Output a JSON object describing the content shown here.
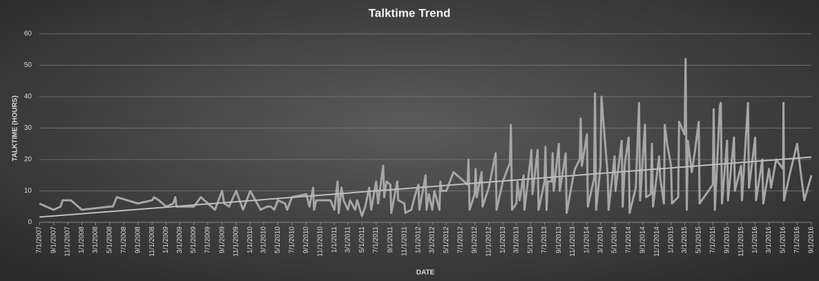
{
  "chart_data": {
    "type": "line",
    "title": "Talktime Trend",
    "x_label": "DATE",
    "y_label": "TALKTIME (HOURS)",
    "color": "#a6a6a6",
    "trendline": "linear",
    "trendline_color": "#bfbfbf",
    "grid": true,
    "ylim": [
      0,
      60
    ],
    "yticks": [
      0,
      10,
      20,
      30,
      40,
      50,
      60
    ],
    "xlim": [
      "2007-07-01",
      "2016-09-01"
    ],
    "xticks": [
      {
        "value": "2007-07-01",
        "label": "7/1/2007"
      },
      {
        "value": "2007-09-01",
        "label": "9/1/2007"
      },
      {
        "value": "2007-11-01",
        "label": "11/1/2007"
      },
      {
        "value": "2008-01-01",
        "label": "1/1/2008"
      },
      {
        "value": "2008-03-01",
        "label": "3/1/2008"
      },
      {
        "value": "2008-05-01",
        "label": "5/1/2008"
      },
      {
        "value": "2008-07-01",
        "label": "7/1/2008"
      },
      {
        "value": "2008-09-01",
        "label": "9/1/2008"
      },
      {
        "value": "2008-11-01",
        "label": "11/1/2008"
      },
      {
        "value": "2009-01-01",
        "label": "1/1/2009"
      },
      {
        "value": "2009-03-01",
        "label": "3/1/2009"
      },
      {
        "value": "2009-05-01",
        "label": "5/1/2009"
      },
      {
        "value": "2009-07-01",
        "label": "7/1/2009"
      },
      {
        "value": "2009-09-01",
        "label": "9/1/2009"
      },
      {
        "value": "2009-11-01",
        "label": "11/1/2009"
      },
      {
        "value": "2010-01-01",
        "label": "1/1/2010"
      },
      {
        "value": "2010-03-01",
        "label": "3/1/2010"
      },
      {
        "value": "2010-05-01",
        "label": "5/1/2010"
      },
      {
        "value": "2010-07-01",
        "label": "7/1/2010"
      },
      {
        "value": "2010-09-01",
        "label": "9/1/2010"
      },
      {
        "value": "2010-11-01",
        "label": "11/1/2010"
      },
      {
        "value": "2011-01-01",
        "label": "1/1/2011"
      },
      {
        "value": "2011-03-01",
        "label": "3/1/2011"
      },
      {
        "value": "2011-05-01",
        "label": "5/1/2011"
      },
      {
        "value": "2011-07-01",
        "label": "7/1/2011"
      },
      {
        "value": "2011-09-01",
        "label": "9/1/2011"
      },
      {
        "value": "2011-11-01",
        "label": "11/1/2011"
      },
      {
        "value": "2012-01-01",
        "label": "1/1/2012"
      },
      {
        "value": "2012-03-01",
        "label": "3/1/2012"
      },
      {
        "value": "2012-05-01",
        "label": "5/1/2012"
      },
      {
        "value": "2012-07-01",
        "label": "7/1/2012"
      },
      {
        "value": "2012-09-01",
        "label": "9/1/2012"
      },
      {
        "value": "2012-11-01",
        "label": "11/1/2012"
      },
      {
        "value": "2013-01-01",
        "label": "1/1/2013"
      },
      {
        "value": "2013-03-01",
        "label": "3/1/2013"
      },
      {
        "value": "2013-05-01",
        "label": "5/1/2013"
      },
      {
        "value": "2013-07-01",
        "label": "7/1/2013"
      },
      {
        "value": "2013-09-01",
        "label": "9/1/2013"
      },
      {
        "value": "2013-11-01",
        "label": "11/1/2013"
      },
      {
        "value": "2014-01-01",
        "label": "1/1/2014"
      },
      {
        "value": "2014-03-01",
        "label": "3/1/2014"
      },
      {
        "value": "2014-05-01",
        "label": "5/1/2014"
      },
      {
        "value": "2014-07-01",
        "label": "7/1/2014"
      },
      {
        "value": "2014-09-01",
        "label": "9/1/2014"
      },
      {
        "value": "2014-11-01",
        "label": "11/1/2014"
      },
      {
        "value": "2015-01-01",
        "label": "1/1/2015"
      },
      {
        "value": "2015-03-01",
        "label": "3/1/2015"
      },
      {
        "value": "2015-05-01",
        "label": "5/1/2015"
      },
      {
        "value": "2015-07-01",
        "label": "7/1/2015"
      },
      {
        "value": "2015-09-01",
        "label": "9/1/2015"
      },
      {
        "value": "2015-11-01",
        "label": "11/1/2015"
      },
      {
        "value": "2016-01-01",
        "label": "1/1/2016"
      },
      {
        "value": "2016-03-01",
        "label": "3/1/2016"
      },
      {
        "value": "2016-05-01",
        "label": "5/1/2016"
      },
      {
        "value": "2016-07-01",
        "label": "7/1/2016"
      },
      {
        "value": "2016-09-01",
        "label": "9/1/2016"
      }
    ],
    "x": [
      "2007-07-01",
      "2007-08-15",
      "2007-09-01",
      "2007-10-01",
      "2007-10-10",
      "2007-11-15",
      "2008-01-01",
      "2008-05-01",
      "2008-05-15",
      "2008-06-01",
      "2008-09-01",
      "2008-11-01",
      "2008-11-10",
      "2008-12-01",
      "2009-01-01",
      "2009-02-01",
      "2009-02-10",
      "2009-02-15",
      "2009-05-01",
      "2009-06-01",
      "2009-08-01",
      "2009-09-01",
      "2009-09-10",
      "2009-10-01",
      "2009-11-01",
      "2009-12-01",
      "2010-01-01",
      "2010-02-15",
      "2010-03-15",
      "2010-04-01",
      "2010-04-15",
      "2010-05-01",
      "2010-06-01",
      "2010-06-10",
      "2010-07-01",
      "2010-09-01",
      "2010-09-15",
      "2010-10-01",
      "2010-10-05",
      "2010-10-15",
      "2010-12-15",
      "2011-01-01",
      "2011-01-15",
      "2011-01-20",
      "2011-02-01",
      "2011-02-10",
      "2011-03-01",
      "2011-03-10",
      "2011-04-01",
      "2011-04-10",
      "2011-05-01",
      "2011-05-15",
      "2011-06-01",
      "2011-06-10",
      "2011-07-01",
      "2011-07-10",
      "2011-08-01",
      "2011-08-05",
      "2011-08-15",
      "2011-09-01",
      "2011-09-05",
      "2011-10-01",
      "2011-10-05",
      "2011-11-01",
      "2011-11-05",
      "2011-12-01",
      "2011-12-15",
      "2012-01-01",
      "2012-01-05",
      "2012-02-01",
      "2012-02-05",
      "2012-02-15",
      "2012-03-01",
      "2012-03-10",
      "2012-04-01",
      "2012-04-05",
      "2012-04-10",
      "2012-05-01",
      "2012-06-01",
      "2012-08-01",
      "2012-08-05",
      "2012-08-10",
      "2012-09-01",
      "2012-09-05",
      "2012-09-10",
      "2012-10-01",
      "2012-10-05",
      "2012-11-01",
      "2012-12-01",
      "2012-12-05",
      "2013-01-01",
      "2013-02-01",
      "2013-02-05",
      "2013-02-10",
      "2013-03-01",
      "2013-03-05",
      "2013-03-15",
      "2013-04-01",
      "2013-04-05",
      "2013-05-01",
      "2013-05-05",
      "2013-05-10",
      "2013-06-01",
      "2013-06-05",
      "2013-07-01",
      "2013-07-05",
      "2013-07-10",
      "2013-07-15",
      "2013-08-01",
      "2013-08-05",
      "2013-08-10",
      "2013-09-01",
      "2013-09-05",
      "2013-10-01",
      "2013-10-05",
      "2013-11-01",
      "2013-11-10",
      "2013-12-01",
      "2013-12-05",
      "2013-12-10",
      "2014-01-01",
      "2014-01-05",
      "2014-02-01",
      "2014-02-05",
      "2014-02-10",
      "2014-03-01",
      "2014-03-05",
      "2014-04-01",
      "2014-04-05",
      "2014-05-01",
      "2014-05-05",
      "2014-06-01",
      "2014-06-05",
      "2014-06-15",
      "2014-07-01",
      "2014-07-05",
      "2014-08-01",
      "2014-08-15",
      "2014-08-20",
      "2014-09-10",
      "2014-09-15",
      "2014-10-05",
      "2014-10-10",
      "2014-10-15",
      "2014-11-10",
      "2014-11-15",
      "2014-12-01",
      "2014-12-05",
      "2014-12-15",
      "2015-01-01",
      "2015-01-05",
      "2015-02-01",
      "2015-02-05",
      "2015-03-01",
      "2015-03-05",
      "2015-03-10",
      "2015-03-15",
      "2015-04-01",
      "2015-04-15",
      "2015-05-01",
      "2015-05-05",
      "2015-07-01",
      "2015-07-05",
      "2015-07-10",
      "2015-08-01",
      "2015-08-05",
      "2015-08-10",
      "2015-09-01",
      "2015-09-05",
      "2015-10-01",
      "2015-10-05",
      "2015-11-01",
      "2015-11-05",
      "2015-12-01",
      "2015-12-05",
      "2016-01-01",
      "2016-01-05",
      "2016-02-01",
      "2016-02-05",
      "2016-03-01",
      "2016-03-10",
      "2016-04-01",
      "2016-05-01",
      "2016-05-03",
      "2016-05-05",
      "2016-06-01",
      "2016-07-01",
      "2016-08-01",
      "2016-09-01"
    ],
    "values": [
      6,
      4.5,
      4,
      5,
      7,
      7,
      4,
      5,
      5,
      8,
      6,
      7,
      8,
      7,
      5,
      6,
      8,
      5,
      5,
      8,
      4,
      10,
      6,
      5,
      10,
      4,
      10,
      4,
      5,
      5,
      4,
      7,
      6,
      4,
      8,
      9,
      5,
      11,
      4,
      7,
      7,
      4,
      13,
      3,
      11,
      7,
      4,
      7,
      4,
      7,
      2,
      5,
      11,
      4,
      13,
      6,
      18,
      8,
      13,
      12,
      3,
      13,
      7,
      6,
      3,
      4,
      8,
      12,
      4,
      15,
      4,
      9,
      4,
      10,
      4,
      13,
      10,
      10,
      16,
      12,
      20,
      4,
      9,
      17,
      8,
      16,
      5,
      11,
      22,
      4,
      13,
      19,
      31,
      4,
      6,
      13,
      7,
      15,
      4,
      20,
      23,
      9,
      23,
      4,
      13,
      24,
      4,
      13,
      13,
      22,
      10,
      25,
      10,
      22,
      3,
      14,
      17,
      20,
      33,
      18,
      28,
      5,
      14,
      41,
      4,
      18,
      40,
      15,
      4,
      21,
      10,
      26,
      5,
      19,
      27,
      3,
      11,
      38,
      7,
      31,
      8,
      9,
      25,
      5,
      21,
      14,
      6,
      31,
      25,
      18,
      6,
      8,
      32,
      28,
      52,
      4,
      26,
      16,
      23,
      32,
      6,
      12,
      36,
      4,
      37,
      38,
      6,
      26,
      7,
      27,
      10,
      18,
      7,
      38,
      11,
      27,
      7,
      20,
      6,
      17,
      11,
      20,
      17,
      38,
      7,
      16,
      25,
      7,
      15
    ]
  }
}
